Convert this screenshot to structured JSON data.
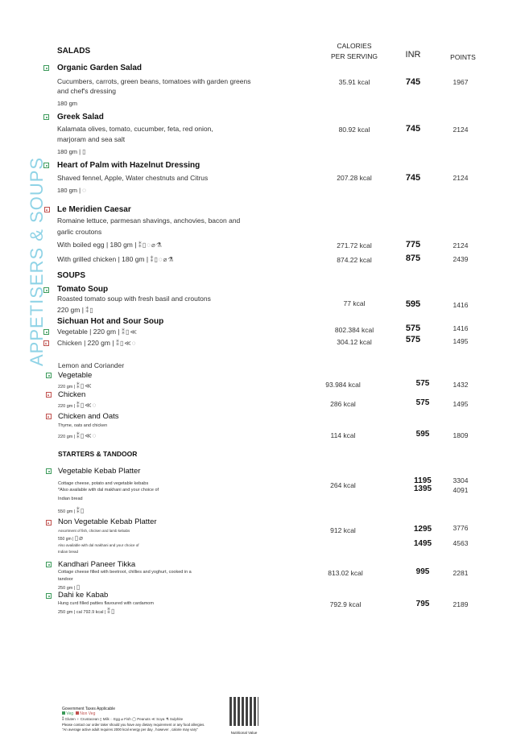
{
  "side_title": "APPETISERS & SOUPS",
  "headers": {
    "calories": "CALORIES",
    "calories2": "PER SERVING",
    "inr": "INR",
    "points": "POINTS"
  },
  "salads": {
    "title": "SALADS",
    "items": [
      {
        "name": "Organic Garden Salad",
        "desc1": "Cucumbers, carrots, green beans, tomatoes with garden greens",
        "desc2": "and chef's dressing",
        "meta": "180 gm",
        "kcal": "35.91 kcal",
        "inr": "745",
        "points": "1967"
      },
      {
        "name": "Greek Salad",
        "desc1": "Kalamata olives, tomato, cucumber, feta, red onion,",
        "desc2": "marjoram and sea salt",
        "meta": "180 gm |",
        "kcal": "80.92 kcal",
        "inr": "745",
        "points": "2124"
      },
      {
        "name": "Heart of Palm with Hazelnut Dressing",
        "desc1": "Shaved fennel, Apple, Water chestnuts and Citrus",
        "meta": "180 gm |",
        "kcal": "207.28 kcal",
        "inr": "745",
        "points": "2124"
      },
      {
        "name": "Le Meridien Caesar",
        "desc1": "Romaine lettuce, parmesan shavings, anchovies, bacon and",
        "desc2": "garlic croutons",
        "v1": "With boiled egg | 180 gm |",
        "k1": "271.72 kcal",
        "i1": "775",
        "p1": "2124",
        "v2": "With grilled chicken | 180 gm |",
        "k2": "874.22 kcal",
        "i2": "875",
        "p2": "2439"
      }
    ]
  },
  "soups": {
    "title": "SOUPS",
    "items": [
      {
        "name": "Tomato Soup",
        "desc1": "Roasted tomato soup with fresh basil and croutons",
        "meta": "220 gm |",
        "kcal": "77 kcal",
        "inr": "595",
        "points": "1416"
      },
      {
        "name": "Sichuan Hot and Sour Soup",
        "v1": "Vegetable | 220 gm |",
        "k1": "802.384 kcal",
        "i1": "575",
        "p1": "1416",
        "v2": "Chicken | 220 gm |",
        "k2": "304.12 kcal",
        "i2": "575",
        "p2": "1495"
      },
      {
        "name": "Lemon and Coriander",
        "v1": "Vegetable",
        "m1": "220 gm |",
        "k1": "93.984 kcal",
        "i1": "575",
        "p1": "1432",
        "v2": "Chicken",
        "m2": "220 gm |",
        "k2": "286 kcal",
        "i2": "575",
        "p2": "1495"
      },
      {
        "name": "Chicken and Oats",
        "desc1": "Thyme, oats and chicken",
        "meta": "220 gm |",
        "kcal": "114 kcal",
        "inr": "595",
        "points": "1809"
      }
    ]
  },
  "starters": {
    "title": "STARTERS & TANDOOR",
    "items": [
      {
        "name": "Vegetable Kebab Platter",
        "desc1": "Cottage cheese, potato and vegetable kebabs",
        "desc2": "*Also available with dal makhani and your choice of",
        "desc3": "Indian bread",
        "meta": "550 gm |",
        "kcal": "264 kcal",
        "inr": "1195",
        "inr2": "1395",
        "points": "3304",
        "points2": "4091"
      },
      {
        "name": "Non Vegetable Kebab Platter",
        "desc1": "Assortment of fish, chicken and lamb kebabs",
        "meta": "550 gm |",
        "desc2": "Also available with dal makhani and your choice of",
        "desc3": "Indian bread",
        "kcal": "912 kcal",
        "inr": "1295",
        "inr2": "1495",
        "points": "3776",
        "points2": "4563"
      },
      {
        "name": "Kandhari Paneer Tikka",
        "desc1": "Cottage cheese filled with beetroot, chillies and yoghurt, cooked in a",
        "desc2": "tandoor",
        "meta": "250 gm |",
        "kcal": "813.02 kcal",
        "inr": "995",
        "points": "2281"
      },
      {
        "name": "Dahi ke Kabab",
        "desc1": "Hung curd filled patties flavoured with cardamom",
        "meta": "250 gm | cal 792.9 kcal |",
        "kcal": "792.9 kcal",
        "inr": "795",
        "points": "2189"
      }
    ]
  },
  "footer": {
    "taxes": "Government Taxes Applicable",
    "veg": "Veg",
    "nonveg": "Non Veg",
    "legend": [
      "Gluten",
      "Crustacean",
      "Milk",
      "Egg",
      "Fish",
      "Peanuts",
      "Soya",
      "Sulphite"
    ],
    "note1": "Please contact our order taker should you have any dietary requirement or any food allergies.",
    "note2": "\"An average active adult requires 2000 kcal energy per day , however , calorie may vary\"",
    "qr_label": "Nutritional Value"
  },
  "colors": {
    "veg": "#3b9a5a",
    "nonveg": "#c0504d",
    "side_title": "#8fd3e6"
  }
}
